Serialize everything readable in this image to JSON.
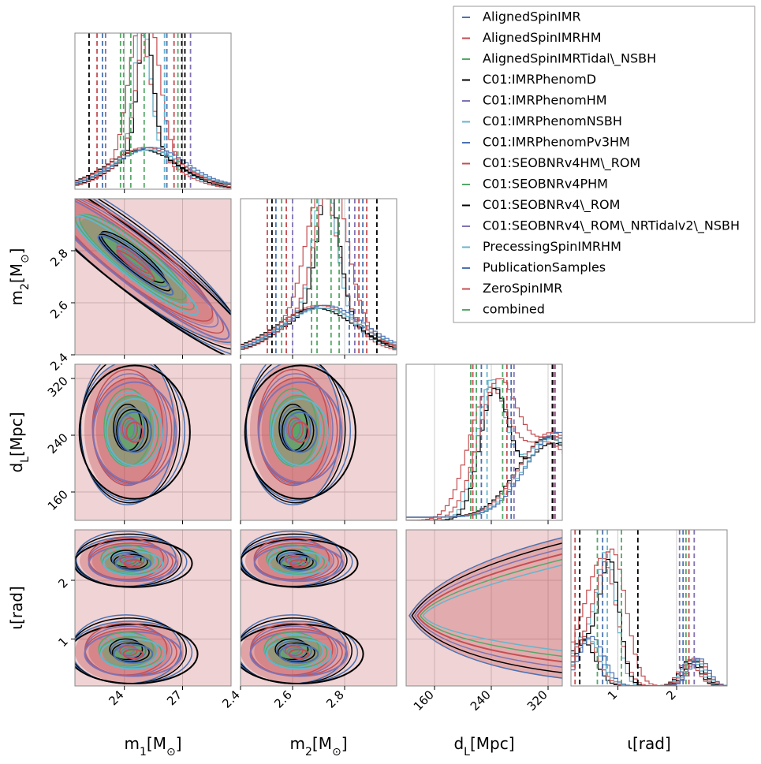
{
  "chart_data": {
    "type": "corner",
    "grid": true,
    "legend_position": "upper right",
    "series": [
      {
        "name": "AlignedSpinIMR",
        "color": "#4c72b0"
      },
      {
        "name": "AlignedSpinIMRHM",
        "color": "#c44e52"
      },
      {
        "name": "AlignedSpinIMRTidal\\_NSBH",
        "color": "#55a868"
      },
      {
        "name": "C01:IMRPhenomD",
        "color": "#000000"
      },
      {
        "name": "C01:IMRPhenomHM",
        "color": "#8172b2"
      },
      {
        "name": "C01:IMRPhenomNSBH",
        "color": "#64b5cd"
      },
      {
        "name": "C01:IMRPhenomPv3HM",
        "color": "#4c72b0"
      },
      {
        "name": "C01:SEOBNRv4HM\\_ROM",
        "color": "#c44e52"
      },
      {
        "name": "C01:SEOBNRv4PHM",
        "color": "#55a868"
      },
      {
        "name": "C01:SEOBNRv4\\_ROM",
        "color": "#000000"
      },
      {
        "name": "C01:SEOBNRv4\\_ROM\\_NRTidalv2\\_NSBH",
        "color": "#8172b2"
      },
      {
        "name": "PrecessingSpinIMRHM",
        "color": "#64b5cd"
      },
      {
        "name": "PublicationSamples",
        "color": "#4c72b0"
      },
      {
        "name": "ZeroSpinIMR",
        "color": "#c44e52"
      },
      {
        "name": "combined",
        "color": "#55a868"
      }
    ],
    "parameters": [
      {
        "label": [
          "m",
          "1",
          "[M",
          "⊙",
          "]"
        ],
        "lim": [
          21.45,
          29.5
        ],
        "ticks": [
          24,
          27
        ],
        "quantile_lines": {
          "values": [
            22.18,
            22.59,
            22.87,
            23.03,
            23.8,
            23.96,
            24.33,
            25.02,
            26.07,
            26.19,
            26.56,
            26.76,
            26.96,
            27.12,
            27.41
          ],
          "colors": [
            "#000000",
            "#c44e52",
            "#4c72b0",
            "#8172b2",
            "#55a868",
            "#55a868",
            "#55a868",
            "#55a868",
            "#64b5cd",
            "#4c72b0",
            "#c44e52",
            "#55a868",
            "#000000",
            "#000000",
            "#8172b2"
          ]
        }
      },
      {
        "label": [
          "m",
          "2",
          "[M",
          "⊙",
          "]"
        ],
        "lim": [
          2.4,
          3.0
        ],
        "ticks": [
          2.4,
          2.6,
          2.8
        ],
        "quantile_lines": {
          "values": [
            2.503,
            2.521,
            2.536,
            2.558,
            2.576,
            2.6,
            2.673,
            2.694,
            2.748,
            2.779,
            2.818,
            2.839,
            2.855,
            2.87,
            2.885,
            2.924
          ],
          "colors": [
            "#c44e52",
            "#000000",
            "#4c72b0",
            "#55a868",
            "#c44e52",
            "#8172b2",
            "#55a868",
            "#55a868",
            "#55a868",
            "#55a868",
            "#4c72b0",
            "#8172b2",
            "#c44e52",
            "#4c72b0",
            "#c44e52",
            "#000000"
          ]
        }
      },
      {
        "label": [
          "d",
          "L",
          "[Mpc]"
        ],
        "lim": [
          120,
          340
        ],
        "ticks": [
          160,
          240,
          320
        ],
        "quantile_lines": {
          "values": [
            211,
            214,
            219,
            226,
            234,
            256,
            262,
            268,
            272,
            326,
            328,
            330
          ],
          "colors": [
            "#55a868",
            "#c44e52",
            "#55a868",
            "#4c72b0",
            "#64b5cd",
            "#55a868",
            "#c44e52",
            "#4c72b0",
            "#8172b2",
            "#000000",
            "#c44e52",
            "#8172b2"
          ]
        }
      },
      {
        "label": [
          "ι[rad]"
        ],
        "lim": [
          0.2,
          2.86
        ],
        "ticks": [
          1,
          2
        ],
        "quantile_lines": {
          "values": [
            0.27,
            0.35,
            0.65,
            0.74,
            0.82,
            1.06,
            1.34,
            2.05,
            2.11,
            2.16,
            2.21,
            2.3
          ],
          "colors": [
            "#c44e52",
            "#000000",
            "#55a868",
            "#4c72b0",
            "#64b5cd",
            "#55a868",
            "#000000",
            "#8172b2",
            "#4c72b0",
            "#55a868",
            "#c44e52",
            "#8172b2"
          ]
        }
      }
    ]
  }
}
